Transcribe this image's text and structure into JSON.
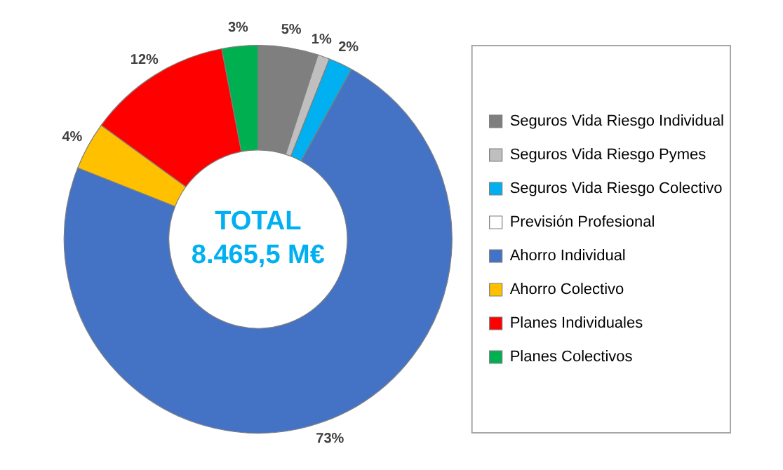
{
  "chart_data": {
    "type": "donut",
    "categories": [
      "Seguros Vida Riesgo Individual",
      "Seguros Vida Riesgo Pymes",
      "Seguros Vida Riesgo Colectivo",
      "Previsión Profesional",
      "Ahorro Individual",
      "Ahorro Colectivo",
      "Planes Individuales",
      "Planes Colectivos"
    ],
    "values": [
      5,
      1,
      2,
      0,
      73,
      4,
      12,
      3
    ],
    "value_labels": [
      "5%",
      "1%",
      "2%",
      null,
      "73%",
      "4%",
      "12%",
      "3%"
    ],
    "colors": [
      "#7f7f7f",
      "#bfbfbf",
      "#00b0f0",
      "#ffffff",
      "#4472c4",
      "#ffc000",
      "#ff0000",
      "#00b050"
    ],
    "annotations": [
      "TOTAL",
      "8.465,5 M€"
    ],
    "legend": "right"
  }
}
